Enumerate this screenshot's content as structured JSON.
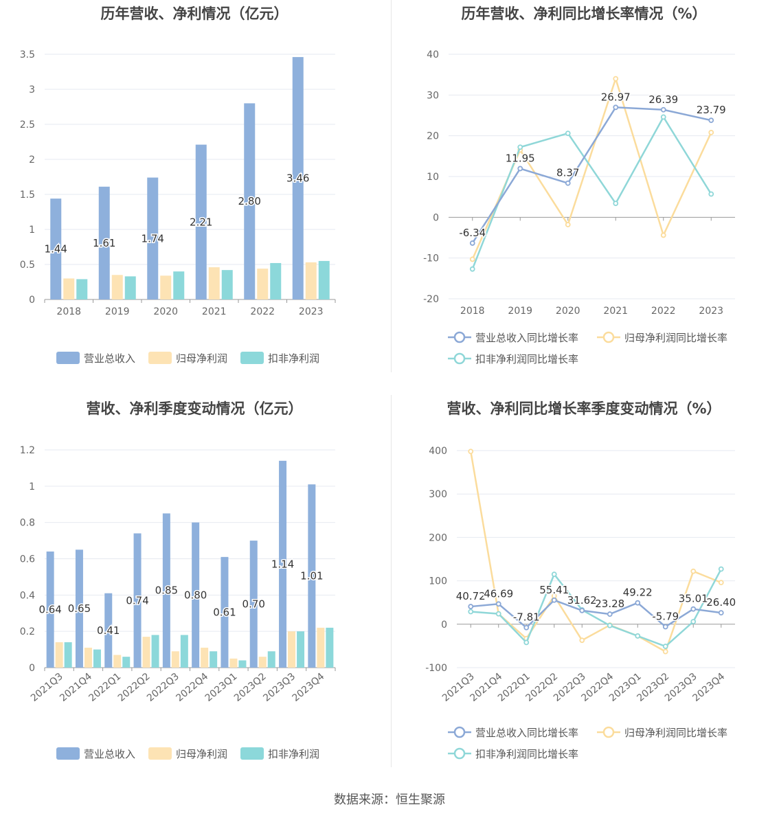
{
  "source_text": "数据来源：恒生聚源",
  "colors": {
    "revenue": "#8eb0dc",
    "net_profit": "#fde3b4",
    "deducted_profit": "#8cd8da",
    "revenue_line": "#8ba8d6",
    "net_profit_line": "#fbdc9c",
    "deducted_line": "#8fd7d8",
    "grid": "#e6e9f0",
    "axis_text": "#666666"
  },
  "chart_data": [
    {
      "type": "bar",
      "title": "历年营收、净利情况（亿元）",
      "categories": [
        "2018",
        "2019",
        "2020",
        "2021",
        "2022",
        "2023"
      ],
      "ylim": [
        0,
        3.5
      ],
      "yticks": [
        "0",
        "0.5",
        "1",
        "1.5",
        "2",
        "2.5",
        "3",
        "3.5"
      ],
      "series": [
        {
          "name": "营业总收入",
          "values": [
            1.44,
            1.61,
            1.74,
            2.21,
            2.8,
            3.46
          ],
          "labels": [
            "1.44",
            "1.61",
            "1.74",
            "2.21",
            "2.80",
            "3.46"
          ]
        },
        {
          "name": "归母净利润",
          "values": [
            0.3,
            0.35,
            0.34,
            0.46,
            0.44,
            0.53
          ]
        },
        {
          "name": "扣非净利润",
          "values": [
            0.29,
            0.33,
            0.4,
            0.42,
            0.52,
            0.55
          ]
        }
      ],
      "legend": "bottom",
      "grid": true
    },
    {
      "type": "line",
      "title": "历年营收、净利同比增长率情况（%）",
      "categories": [
        "2018",
        "2019",
        "2020",
        "2021",
        "2022",
        "2023"
      ],
      "ylim": [
        -20,
        40
      ],
      "yticks": [
        "-20",
        "-10",
        "0",
        "10",
        "20",
        "30",
        "40"
      ],
      "series": [
        {
          "name": "营业总收入同比增长率",
          "values": [
            -6.34,
            11.95,
            8.37,
            26.97,
            26.39,
            23.79
          ],
          "labels": [
            "-6.34",
            "11.95",
            "8.37",
            "26.97",
            "26.39",
            "23.79"
          ]
        },
        {
          "name": "归母净利润同比增长率",
          "values": [
            -10.3,
            16.5,
            -1.8,
            34.0,
            -4.4,
            20.8
          ]
        },
        {
          "name": "扣非净利润同比增长率",
          "values": [
            -12.7,
            17.2,
            20.6,
            3.4,
            24.6,
            5.7
          ]
        }
      ],
      "legend": "bottom",
      "grid": true
    },
    {
      "type": "bar",
      "title": "营收、净利季度变动情况（亿元）",
      "categories": [
        "2021Q3",
        "2021Q4",
        "2022Q1",
        "2022Q2",
        "2022Q3",
        "2022Q4",
        "2023Q1",
        "2023Q2",
        "2023Q3",
        "2023Q4"
      ],
      "ylim": [
        0,
        1.2
      ],
      "yticks": [
        "0",
        "0.2",
        "0.4",
        "0.6",
        "0.8",
        "1",
        "1.2"
      ],
      "series": [
        {
          "name": "营业总收入",
          "values": [
            0.64,
            0.65,
            0.41,
            0.74,
            0.85,
            0.8,
            0.61,
            0.7,
            1.14,
            1.01
          ],
          "labels": [
            "0.64",
            "0.65",
            "0.41",
            "0.74",
            "0.85",
            "0.80",
            "0.61",
            "0.70",
            "1.14",
            "1.01"
          ]
        },
        {
          "name": "归母净利润",
          "values": [
            0.14,
            0.11,
            0.07,
            0.17,
            0.09,
            0.11,
            0.05,
            0.06,
            0.2,
            0.22
          ]
        },
        {
          "name": "扣非净利润",
          "values": [
            0.14,
            0.1,
            0.06,
            0.18,
            0.18,
            0.09,
            0.04,
            0.09,
            0.2,
            0.22
          ]
        }
      ],
      "legend": "bottom",
      "grid": true
    },
    {
      "type": "line",
      "title": "营收、净利同比增长率季度变动情况（%）",
      "categories": [
        "2021Q3",
        "2021Q4",
        "2022Q1",
        "2022Q2",
        "2022Q3",
        "2022Q4",
        "2023Q1",
        "2023Q2",
        "2023Q3",
        "2023Q4"
      ],
      "ylim": [
        -100,
        400
      ],
      "yticks": [
        "-100",
        "0",
        "100",
        "200",
        "300",
        "400"
      ],
      "series": [
        {
          "name": "营业总收入同比增长率",
          "values": [
            40.72,
            46.69,
            -7.81,
            55.41,
            31.62,
            23.28,
            49.22,
            -5.79,
            35.01,
            26.4
          ],
          "labels": [
            "40.72",
            "46.69",
            "-7.81",
            "55.41",
            "31.62",
            "23.28",
            "49.22",
            "-5.79",
            "35.01",
            "26.40"
          ]
        },
        {
          "name": "归母净利润同比增长率",
          "values": [
            398,
            24,
            -33,
            65,
            -37,
            -2,
            -27,
            -63,
            122,
            96
          ]
        },
        {
          "name": "扣非净利润同比增长率",
          "values": [
            29,
            24,
            -42,
            115,
            33,
            -3,
            -27,
            -51,
            6,
            127
          ]
        }
      ],
      "legend": "bottom",
      "grid": true
    }
  ]
}
